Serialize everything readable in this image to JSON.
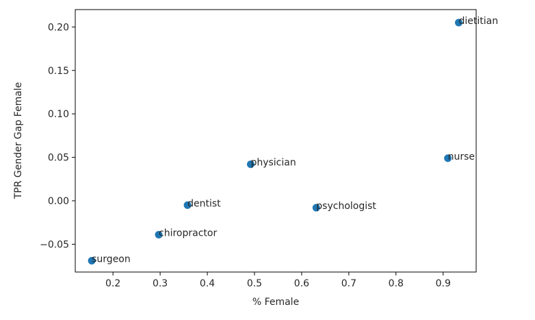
{
  "chart_data": {
    "type": "scatter",
    "title": "",
    "xlabel": "% Female",
    "ylabel": "TPR Gender Gap Female",
    "xlim": [
      0.12,
      0.97
    ],
    "ylim": [
      -0.082,
      0.22
    ],
    "grid": false,
    "marker_color": "#1f77b4",
    "x_ticks": [
      "0.2",
      "0.3",
      "0.4",
      "0.5",
      "0.6",
      "0.7",
      "0.8",
      "0.9"
    ],
    "y_ticks": [
      "−0.05",
      "0.00",
      "0.05",
      "0.10",
      "0.15",
      "0.20"
    ],
    "points": [
      {
        "label": "surgeon",
        "x": 0.155,
        "y": -0.069
      },
      {
        "label": "chiropractor",
        "x": 0.297,
        "y": -0.039
      },
      {
        "label": "dentist",
        "x": 0.358,
        "y": -0.005
      },
      {
        "label": "physician",
        "x": 0.492,
        "y": 0.042
      },
      {
        "label": "psychologist",
        "x": 0.631,
        "y": -0.008
      },
      {
        "label": "nurse",
        "x": 0.91,
        "y": 0.049
      },
      {
        "label": "dietitian",
        "x": 0.933,
        "y": 0.205
      }
    ]
  }
}
